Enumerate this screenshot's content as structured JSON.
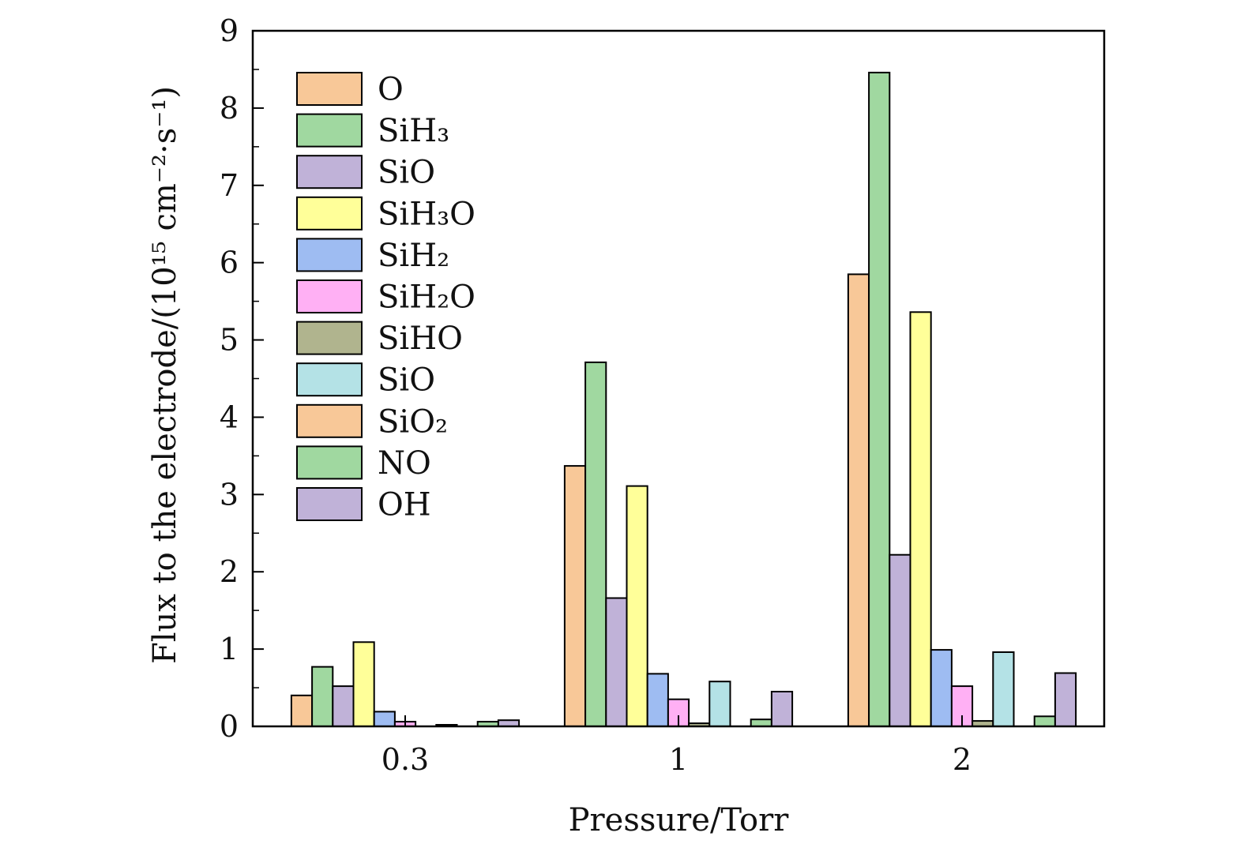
{
  "chart_data": {
    "type": "bar",
    "xlabel": "Pressure/Torr",
    "ylabel": "Flux to the electrode/(10¹⁵ cm⁻²·s⁻¹)",
    "ylim": [
      0,
      9
    ],
    "yticks": [
      "0",
      "1",
      "2",
      "3",
      "4",
      "5",
      "6",
      "7",
      "8",
      "9"
    ],
    "categories": [
      "0.3",
      "1",
      "2"
    ],
    "legend_position": "top-left",
    "grid": false,
    "series": [
      {
        "name": "O",
        "color": "#f8c898",
        "values": [
          0.4,
          3.37,
          5.85
        ]
      },
      {
        "name": "SiH₃",
        "color": "#a0d8a0",
        "values": [
          0.77,
          4.71,
          8.46
        ]
      },
      {
        "name": "SiO",
        "color": "#c0b2d8",
        "values": [
          0.52,
          1.66,
          2.22
        ]
      },
      {
        "name": "SiH₃O",
        "color": "#ffff99",
        "values": [
          1.09,
          3.11,
          5.36
        ]
      },
      {
        "name": "SiH₂",
        "color": "#9ebcf2",
        "values": [
          0.19,
          0.68,
          0.99
        ]
      },
      {
        "name": "SiH₂O",
        "color": "#ffb0f4",
        "values": [
          0.06,
          0.35,
          0.52
        ]
      },
      {
        "name": "SiHO",
        "color": "#b0b48e",
        "values": [
          0.0,
          0.04,
          0.07
        ]
      },
      {
        "name": "SiO",
        "color": "#b4e2e6",
        "values": [
          0.02,
          0.58,
          0.96
        ]
      },
      {
        "name": "SiO₂",
        "color": "#f8c898",
        "values": [
          0.0,
          0.0,
          0.0
        ]
      },
      {
        "name": "NO",
        "color": "#a0d8a0",
        "values": [
          0.06,
          0.09,
          0.13
        ]
      },
      {
        "name": "OH",
        "color": "#c0b2d8",
        "values": [
          0.08,
          0.45,
          0.69
        ]
      }
    ]
  }
}
